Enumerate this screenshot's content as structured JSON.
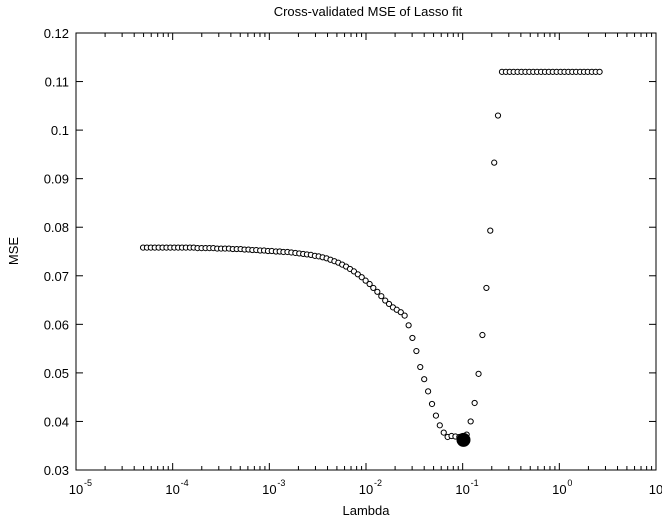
{
  "chart_data": {
    "type": "scatter",
    "title": "Cross-validated MSE of Lasso fit",
    "xlabel": "Lambda",
    "ylabel": "MSE",
    "xscale": "log",
    "xlim": [
      1e-05,
      10
    ],
    "ylim": [
      0.03,
      0.12
    ],
    "xticks": [
      {
        "base": "10",
        "exp": "-5"
      },
      {
        "base": "10",
        "exp": "-4"
      },
      {
        "base": "10",
        "exp": "-3"
      },
      {
        "base": "10",
        "exp": "-2"
      },
      {
        "base": "10",
        "exp": "-1"
      },
      {
        "base": "10",
        "exp": "0"
      },
      {
        "base": "10",
        "exp": ""
      }
    ],
    "yticks": [
      "0.03",
      "0.04",
      "0.05",
      "0.06",
      "0.07",
      "0.08",
      "0.09",
      "0.1",
      "0.11",
      "0.12"
    ],
    "grid": false,
    "marker": "open-circle",
    "highlight_point": {
      "x": 0.102,
      "y": 0.0362
    },
    "points": [
      {
        "x": 4.94e-05,
        "y": 0.0758
      },
      {
        "x": 5.42e-05,
        "y": 0.0758
      },
      {
        "x": 5.95e-05,
        "y": 0.0758
      },
      {
        "x": 6.53e-05,
        "y": 0.0758
      },
      {
        "x": 7.16e-05,
        "y": 0.0758
      },
      {
        "x": 7.86e-05,
        "y": 0.0758
      },
      {
        "x": 8.63e-05,
        "y": 0.0758
      },
      {
        "x": 9.47e-05,
        "y": 0.0758
      },
      {
        "x": 0.000104,
        "y": 0.0758
      },
      {
        "x": 0.000114,
        "y": 0.0758
      },
      {
        "x": 0.000125,
        "y": 0.0758
      },
      {
        "x": 0.000137,
        "y": 0.0758
      },
      {
        "x": 0.000151,
        "y": 0.0758
      },
      {
        "x": 0.000165,
        "y": 0.0758
      },
      {
        "x": 0.000181,
        "y": 0.0757
      },
      {
        "x": 0.000199,
        "y": 0.0757
      },
      {
        "x": 0.000219,
        "y": 0.0757
      },
      {
        "x": 0.00024,
        "y": 0.0757
      },
      {
        "x": 0.000263,
        "y": 0.0757
      },
      {
        "x": 0.000289,
        "y": 0.0756
      },
      {
        "x": 0.000317,
        "y": 0.0756
      },
      {
        "x": 0.000348,
        "y": 0.0756
      },
      {
        "x": 0.000382,
        "y": 0.0756
      },
      {
        "x": 0.000419,
        "y": 0.0755
      },
      {
        "x": 0.00046,
        "y": 0.0755
      },
      {
        "x": 0.000505,
        "y": 0.0755
      },
      {
        "x": 0.000554,
        "y": 0.0754
      },
      {
        "x": 0.000608,
        "y": 0.0754
      },
      {
        "x": 0.000667,
        "y": 0.0753
      },
      {
        "x": 0.000732,
        "y": 0.0753
      },
      {
        "x": 0.000804,
        "y": 0.0752
      },
      {
        "x": 0.000882,
        "y": 0.0752
      },
      {
        "x": 0.000968,
        "y": 0.0751
      },
      {
        "x": 0.00106,
        "y": 0.0751
      },
      {
        "x": 0.00117,
        "y": 0.075
      },
      {
        "x": 0.00128,
        "y": 0.075
      },
      {
        "x": 0.0014,
        "y": 0.0749
      },
      {
        "x": 0.00154,
        "y": 0.0749
      },
      {
        "x": 0.00169,
        "y": 0.0748
      },
      {
        "x": 0.00186,
        "y": 0.0747
      },
      {
        "x": 0.00204,
        "y": 0.0746
      },
      {
        "x": 0.00224,
        "y": 0.0745
      },
      {
        "x": 0.00245,
        "y": 0.0744
      },
      {
        "x": 0.00269,
        "y": 0.0743
      },
      {
        "x": 0.00296,
        "y": 0.0741
      },
      {
        "x": 0.00324,
        "y": 0.074
      },
      {
        "x": 0.00356,
        "y": 0.0738
      },
      {
        "x": 0.00391,
        "y": 0.0736
      },
      {
        "x": 0.00429,
        "y": 0.0733
      },
      {
        "x": 0.00471,
        "y": 0.073
      },
      {
        "x": 0.00517,
        "y": 0.0727
      },
      {
        "x": 0.00567,
        "y": 0.0723
      },
      {
        "x": 0.00622,
        "y": 0.0719
      },
      {
        "x": 0.00683,
        "y": 0.0714
      },
      {
        "x": 0.0075,
        "y": 0.0709
      },
      {
        "x": 0.00823,
        "y": 0.0703
      },
      {
        "x": 0.00903,
        "y": 0.0697
      },
      {
        "x": 0.00991,
        "y": 0.069
      },
      {
        "x": 0.0109,
        "y": 0.0683
      },
      {
        "x": 0.0119,
        "y": 0.0675
      },
      {
        "x": 0.0131,
        "y": 0.0667
      },
      {
        "x": 0.0144,
        "y": 0.0658
      },
      {
        "x": 0.0158,
        "y": 0.0649
      },
      {
        "x": 0.0173,
        "y": 0.0642
      },
      {
        "x": 0.019,
        "y": 0.0635
      },
      {
        "x": 0.0208,
        "y": 0.063
      },
      {
        "x": 0.0229,
        "y": 0.0625
      },
      {
        "x": 0.0251,
        "y": 0.0618
      },
      {
        "x": 0.0276,
        "y": 0.0598
      },
      {
        "x": 0.0302,
        "y": 0.0572
      },
      {
        "x": 0.0332,
        "y": 0.0545
      },
      {
        "x": 0.0364,
        "y": 0.0512
      },
      {
        "x": 0.04,
        "y": 0.0487
      },
      {
        "x": 0.0439,
        "y": 0.0462
      },
      {
        "x": 0.0482,
        "y": 0.0436
      },
      {
        "x": 0.0529,
        "y": 0.0412
      },
      {
        "x": 0.058,
        "y": 0.0392
      },
      {
        "x": 0.0637,
        "y": 0.0377
      },
      {
        "x": 0.0699,
        "y": 0.0368
      },
      {
        "x": 0.0767,
        "y": 0.037
      },
      {
        "x": 0.0842,
        "y": 0.0369
      },
      {
        "x": 0.0924,
        "y": 0.0368
      },
      {
        "x": 0.11,
        "y": 0.0373
      },
      {
        "x": 0.121,
        "y": 0.04
      },
      {
        "x": 0.133,
        "y": 0.0438
      },
      {
        "x": 0.146,
        "y": 0.0498
      },
      {
        "x": 0.16,
        "y": 0.0578
      },
      {
        "x": 0.176,
        "y": 0.0675
      },
      {
        "x": 0.193,
        "y": 0.0793
      },
      {
        "x": 0.212,
        "y": 0.0933
      },
      {
        "x": 0.232,
        "y": 0.103
      },
      {
        "x": 0.255,
        "y": 0.112
      },
      {
        "x": 0.28,
        "y": 0.112
      },
      {
        "x": 0.307,
        "y": 0.112
      },
      {
        "x": 0.337,
        "y": 0.112
      },
      {
        "x": 0.37,
        "y": 0.112
      },
      {
        "x": 0.406,
        "y": 0.112
      },
      {
        "x": 0.446,
        "y": 0.112
      },
      {
        "x": 0.489,
        "y": 0.112
      },
      {
        "x": 0.537,
        "y": 0.112
      },
      {
        "x": 0.589,
        "y": 0.112
      },
      {
        "x": 0.647,
        "y": 0.112
      },
      {
        "x": 0.71,
        "y": 0.112
      },
      {
        "x": 0.779,
        "y": 0.112
      },
      {
        "x": 0.855,
        "y": 0.112
      },
      {
        "x": 0.938,
        "y": 0.112
      },
      {
        "x": 1.03,
        "y": 0.112
      },
      {
        "x": 1.13,
        "y": 0.112
      },
      {
        "x": 1.24,
        "y": 0.112
      },
      {
        "x": 1.36,
        "y": 0.112
      },
      {
        "x": 1.49,
        "y": 0.112
      },
      {
        "x": 1.64,
        "y": 0.112
      },
      {
        "x": 1.8,
        "y": 0.112
      },
      {
        "x": 1.97,
        "y": 0.112
      },
      {
        "x": 2.17,
        "y": 0.112
      },
      {
        "x": 2.38,
        "y": 0.112
      },
      {
        "x": 2.61,
        "y": 0.112
      }
    ]
  }
}
